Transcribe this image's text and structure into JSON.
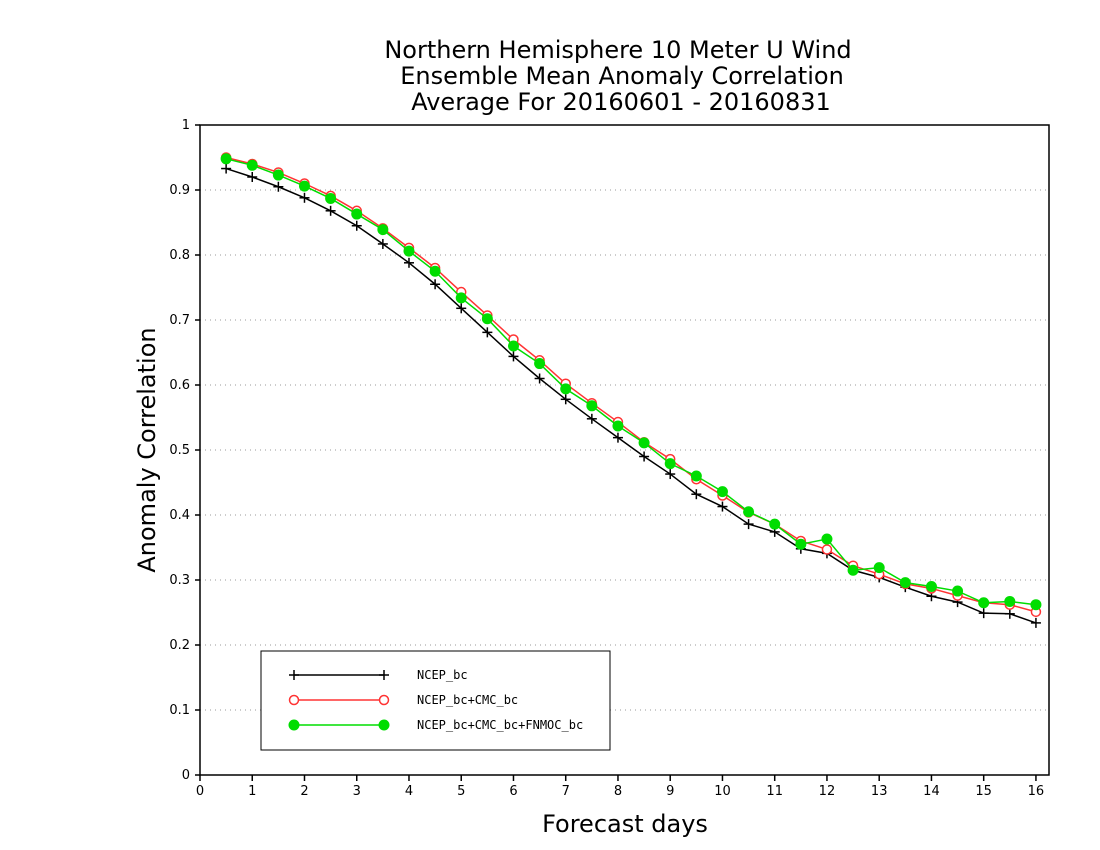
{
  "chart_data": {
    "type": "line",
    "title": [
      "Northern Hemisphere 10 Meter U Wind",
      "Ensemble Mean Anomaly Correlation",
      "Average For 20160601 - 20160831"
    ],
    "xlabel": "Forecast days",
    "ylabel": "Anomaly Correlation",
    "xlim": [
      0,
      16.25
    ],
    "ylim": [
      0,
      1
    ],
    "xticks": [
      "0",
      "1",
      "2",
      "3",
      "4",
      "5",
      "6",
      "7",
      "8",
      "9",
      "10",
      "11",
      "12",
      "13",
      "14",
      "15",
      "16"
    ],
    "yticks": [
      "0",
      "0.1",
      "0.2",
      "0.3",
      "0.4",
      "0.5",
      "0.6",
      "0.7",
      "0.8",
      "0.9",
      "1"
    ],
    "grid": "horizontal dotted",
    "legend_position": "bottom-left",
    "x": [
      0.5,
      1,
      1.5,
      2,
      2.5,
      3,
      3.5,
      4,
      4.5,
      5,
      5.5,
      6,
      6.5,
      7,
      7.5,
      8,
      8.5,
      9,
      9.5,
      10,
      10.5,
      11,
      11.5,
      12,
      12.5,
      13,
      13.5,
      14,
      14.5,
      15,
      15.5,
      16
    ],
    "series": [
      {
        "name": "NCEP_bc",
        "color": "#000000",
        "marker": "plus",
        "values": [
          0.933,
          0.92,
          0.905,
          0.888,
          0.868,
          0.845,
          0.817,
          0.788,
          0.755,
          0.718,
          0.681,
          0.644,
          0.61,
          0.578,
          0.548,
          0.519,
          0.49,
          0.463,
          0.432,
          0.413,
          0.386,
          0.374,
          0.348,
          0.341,
          0.315,
          0.304,
          0.289,
          0.275,
          0.266,
          0.249,
          0.248,
          0.234
        ]
      },
      {
        "name": "NCEP_bc+CMC_bc",
        "color": "#ff3333",
        "marker": "open-circle",
        "values": [
          0.95,
          0.94,
          0.927,
          0.91,
          0.891,
          0.868,
          0.841,
          0.811,
          0.78,
          0.743,
          0.707,
          0.67,
          0.638,
          0.602,
          0.572,
          0.543,
          0.512,
          0.486,
          0.455,
          0.43,
          0.404,
          0.386,
          0.36,
          0.347,
          0.322,
          0.309,
          0.294,
          0.287,
          0.276,
          0.265,
          0.262,
          0.251
        ]
      },
      {
        "name": "NCEP_bc+CMC_bc+FNMOC_bc",
        "color": "#00dd00",
        "marker": "filled-circle",
        "values": [
          0.948,
          0.938,
          0.923,
          0.906,
          0.887,
          0.863,
          0.839,
          0.806,
          0.775,
          0.734,
          0.702,
          0.66,
          0.633,
          0.594,
          0.568,
          0.537,
          0.511,
          0.479,
          0.46,
          0.436,
          0.405,
          0.386,
          0.355,
          0.363,
          0.315,
          0.319,
          0.296,
          0.29,
          0.283,
          0.265,
          0.267,
          0.262
        ]
      }
    ]
  }
}
